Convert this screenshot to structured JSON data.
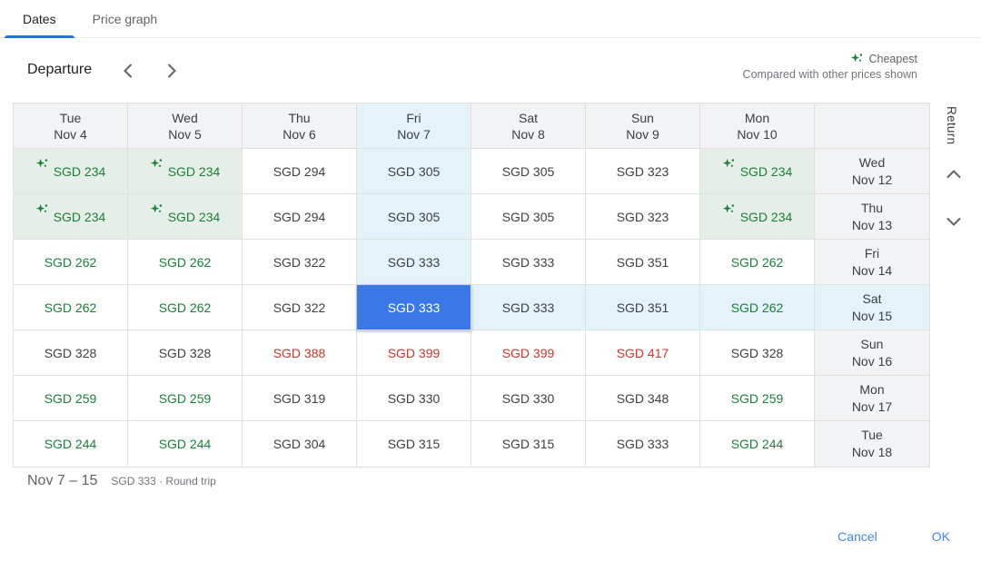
{
  "tabs": [
    {
      "label": "Dates",
      "active": true
    },
    {
      "label": "Price graph",
      "active": false
    }
  ],
  "toolbar": {
    "departure_label": "Departure"
  },
  "legend": {
    "cheapest_label": "Cheapest",
    "subtitle": "Compared with other prices shown"
  },
  "grid": {
    "return_axis_label": "Return",
    "columns": [
      {
        "day": "Tue",
        "date": "Nov 4",
        "highlight": false
      },
      {
        "day": "Wed",
        "date": "Nov 5",
        "highlight": false
      },
      {
        "day": "Thu",
        "date": "Nov 6",
        "highlight": false
      },
      {
        "day": "Fri",
        "date": "Nov 7",
        "highlight": true
      },
      {
        "day": "Sat",
        "date": "Nov 8",
        "highlight": false
      },
      {
        "day": "Sun",
        "date": "Nov 9",
        "highlight": false
      },
      {
        "day": "Mon",
        "date": "Nov 10",
        "highlight": false
      },
      {
        "day": "",
        "date": "",
        "highlight": false
      }
    ],
    "rows": [
      {
        "return_day": "Wed",
        "return_date": "Nov 12",
        "return_highlight": false,
        "cells": [
          {
            "price": "SGD 234",
            "variant": "cheapest",
            "highlight": false
          },
          {
            "price": "SGD 234",
            "variant": "cheapest",
            "highlight": false
          },
          {
            "price": "SGD 294",
            "variant": "normal",
            "highlight": false
          },
          {
            "price": "SGD 305",
            "variant": "normal",
            "highlight": true
          },
          {
            "price": "SGD 305",
            "variant": "normal",
            "highlight": false
          },
          {
            "price": "SGD 323",
            "variant": "normal",
            "highlight": false
          },
          {
            "price": "SGD 234",
            "variant": "cheapest",
            "highlight": false
          }
        ]
      },
      {
        "return_day": "Thu",
        "return_date": "Nov 13",
        "return_highlight": false,
        "cells": [
          {
            "price": "SGD 234",
            "variant": "cheapest",
            "highlight": false
          },
          {
            "price": "SGD 234",
            "variant": "cheapest",
            "highlight": false
          },
          {
            "price": "SGD 294",
            "variant": "normal",
            "highlight": false
          },
          {
            "price": "SGD 305",
            "variant": "normal",
            "highlight": true
          },
          {
            "price": "SGD 305",
            "variant": "normal",
            "highlight": false
          },
          {
            "price": "SGD 323",
            "variant": "normal",
            "highlight": false
          },
          {
            "price": "SGD 234",
            "variant": "cheapest",
            "highlight": false
          }
        ]
      },
      {
        "return_day": "Fri",
        "return_date": "Nov 14",
        "return_highlight": false,
        "cells": [
          {
            "price": "SGD 262",
            "variant": "low",
            "highlight": false
          },
          {
            "price": "SGD 262",
            "variant": "low",
            "highlight": false
          },
          {
            "price": "SGD 322",
            "variant": "normal",
            "highlight": false
          },
          {
            "price": "SGD 333",
            "variant": "normal",
            "highlight": true
          },
          {
            "price": "SGD 333",
            "variant": "normal",
            "highlight": false
          },
          {
            "price": "SGD 351",
            "variant": "normal",
            "highlight": false
          },
          {
            "price": "SGD 262",
            "variant": "low",
            "highlight": false
          }
        ]
      },
      {
        "return_day": "Sat",
        "return_date": "Nov 15",
        "return_highlight": true,
        "cells": [
          {
            "price": "SGD 262",
            "variant": "low",
            "highlight": false
          },
          {
            "price": "SGD 262",
            "variant": "low",
            "highlight": false
          },
          {
            "price": "SGD 322",
            "variant": "normal",
            "highlight": false
          },
          {
            "price": "SGD 333",
            "variant": "selected",
            "highlight": false
          },
          {
            "price": "SGD 333",
            "variant": "normal",
            "highlight": true
          },
          {
            "price": "SGD 351",
            "variant": "normal",
            "highlight": true
          },
          {
            "price": "SGD 262",
            "variant": "low",
            "highlight": true
          }
        ]
      },
      {
        "return_day": "Sun",
        "return_date": "Nov 16",
        "return_highlight": false,
        "cells": [
          {
            "price": "SGD 328",
            "variant": "normal",
            "highlight": false
          },
          {
            "price": "SGD 328",
            "variant": "normal",
            "highlight": false
          },
          {
            "price": "SGD 388",
            "variant": "high",
            "highlight": false
          },
          {
            "price": "SGD 399",
            "variant": "high",
            "highlight": false
          },
          {
            "price": "SGD 399",
            "variant": "high",
            "highlight": false
          },
          {
            "price": "SGD 417",
            "variant": "high",
            "highlight": false
          },
          {
            "price": "SGD 328",
            "variant": "normal",
            "highlight": false
          }
        ]
      },
      {
        "return_day": "Mon",
        "return_date": "Nov 17",
        "return_highlight": false,
        "cells": [
          {
            "price": "SGD 259",
            "variant": "low",
            "highlight": false
          },
          {
            "price": "SGD 259",
            "variant": "low",
            "highlight": false
          },
          {
            "price": "SGD 319",
            "variant": "normal",
            "highlight": false
          },
          {
            "price": "SGD 330",
            "variant": "normal",
            "highlight": false
          },
          {
            "price": "SGD 330",
            "variant": "normal",
            "highlight": false
          },
          {
            "price": "SGD 348",
            "variant": "normal",
            "highlight": false
          },
          {
            "price": "SGD 259",
            "variant": "low",
            "highlight": false
          }
        ]
      },
      {
        "return_day": "Tue",
        "return_date": "Nov 18",
        "return_highlight": false,
        "cells": [
          {
            "price": "SGD 244",
            "variant": "low",
            "highlight": false
          },
          {
            "price": "SGD 244",
            "variant": "low",
            "highlight": false
          },
          {
            "price": "SGD 304",
            "variant": "normal",
            "highlight": false
          },
          {
            "price": "SGD 315",
            "variant": "normal",
            "highlight": false
          },
          {
            "price": "SGD 315",
            "variant": "normal",
            "highlight": false
          },
          {
            "price": "SGD 333",
            "variant": "normal",
            "highlight": false
          },
          {
            "price": "SGD 244",
            "variant": "low",
            "highlight": false
          }
        ]
      }
    ]
  },
  "summary": {
    "date_range": "Nov 7 – 15",
    "detail": "SGD 333 · Round trip"
  },
  "actions": {
    "cancel_label": "Cancel",
    "ok_label": "OK"
  },
  "colors": {
    "accent_blue": "#4285f4",
    "selected_cell_blue": "#3b78e7",
    "highlight_blue": "#e4f2f9",
    "cheapest_green": "#188038",
    "cheapest_bg_green": "#e6efe7",
    "high_price_red": "#cf352b",
    "header_gray": "#f1f3f4"
  }
}
